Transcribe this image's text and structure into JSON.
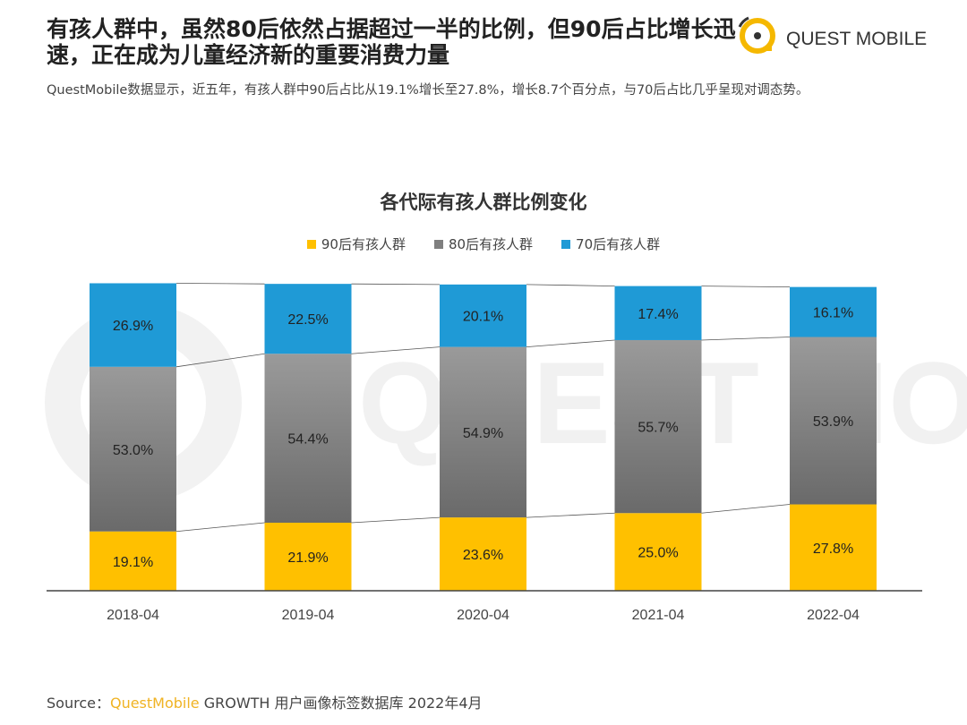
{
  "header": {
    "title": "有孩人群中，虽然80后依然占据超过一半的比例，但90后占比增长迅速，正在成为儿童经济新的重要消费力量",
    "subtitle": "QuestMobile数据显示，近五年，有孩人群中90后占比从19.1%增长至27.8%，增长8.7个百分点，与70后占比几乎呈现对调态势。",
    "logo_text": "QUEST MOBILE"
  },
  "source": {
    "prefix": "Source：",
    "brand": "QuestMobile",
    "rest": " GROWTH 用户画像标签数据库 2022年4月"
  },
  "colors": {
    "s90": "#ffc000",
    "s80": "#7f7f7f",
    "s70": "#1f9ad6",
    "logo": "#f5b800"
  },
  "chart_data": {
    "type": "bar",
    "stacked": true,
    "title": "各代际有孩人群比例变化",
    "categories": [
      "2018-04",
      "2019-04",
      "2020-04",
      "2021-04",
      "2022-04"
    ],
    "series": [
      {
        "name": "90后有孩人群",
        "values": [
          19.1,
          21.9,
          23.6,
          25.0,
          27.8
        ]
      },
      {
        "name": "80后有孩人群",
        "values": [
          53.0,
          54.4,
          54.9,
          55.7,
          53.9
        ]
      },
      {
        "name": "70后有孩人群",
        "values": [
          26.9,
          22.5,
          20.1,
          17.4,
          16.1
        ]
      }
    ],
    "unit": "%",
    "ylim": [
      0,
      100
    ],
    "legend": "top-center",
    "grid": false
  }
}
